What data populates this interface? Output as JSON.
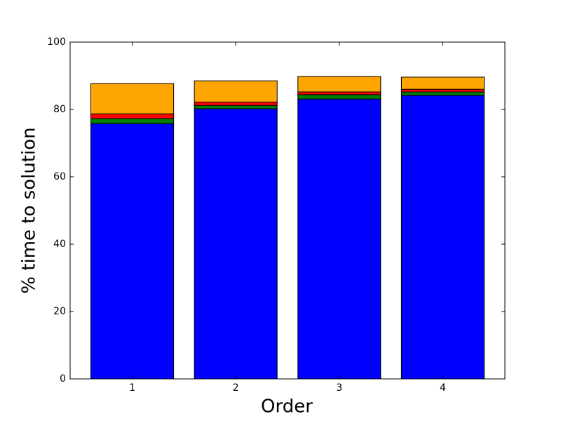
{
  "chart_data": {
    "type": "bar",
    "stacked": true,
    "x": [
      1,
      2,
      3,
      4
    ],
    "xlim": [
      0.4,
      4.6
    ],
    "xticks": [
      1,
      2,
      3,
      4
    ],
    "ylim": [
      0,
      100
    ],
    "yticks": [
      0,
      20,
      40,
      60,
      80,
      100
    ],
    "xlabel": "Order",
    "ylabel": "% time to solution",
    "series": [
      {
        "color": "#0000ff",
        "values": [
          75.8,
          80.2,
          83.1,
          84.2
        ]
      },
      {
        "color": "#008000",
        "values": [
          1.5,
          1.0,
          1.3,
          1.0
        ]
      },
      {
        "color": "#ff0000",
        "values": [
          1.4,
          1.0,
          0.8,
          0.8
        ]
      },
      {
        "color": "#ffa500",
        "values": [
          9.0,
          6.3,
          4.6,
          3.6
        ]
      }
    ]
  }
}
